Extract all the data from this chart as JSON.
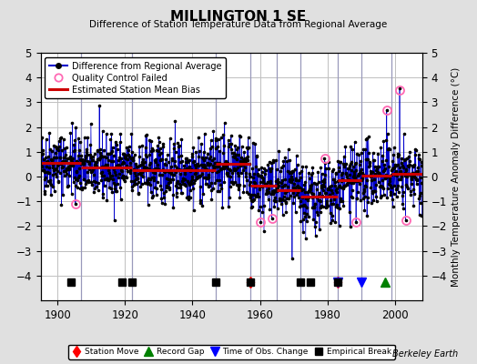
{
  "title": "MILLINGTON 1 SE",
  "subtitle": "Difference of Station Temperature Data from Regional Average",
  "ylabel": "Monthly Temperature Anomaly Difference (°C)",
  "ylim": [
    -5,
    5
  ],
  "yticks": [
    -4,
    -3,
    -2,
    -1,
    0,
    1,
    2,
    3,
    4,
    5
  ],
  "xlim": [
    1895,
    2008
  ],
  "xticks": [
    1900,
    1920,
    1940,
    1960,
    1980,
    2000
  ],
  "background_color": "#e0e0e0",
  "plot_bg_color": "#ffffff",
  "grid_color": "#c0c0c0",
  "line_color": "#0000cc",
  "marker_color": "#000000",
  "bias_color": "#cc0000",
  "qc_color": "#ff69b4",
  "watermark": "Berkeley Earth",
  "segment_biases": [
    {
      "start": 1895,
      "end": 1907,
      "bias": 0.55
    },
    {
      "start": 1907,
      "end": 1922,
      "bias": 0.35
    },
    {
      "start": 1922,
      "end": 1947,
      "bias": 0.25
    },
    {
      "start": 1947,
      "end": 1957,
      "bias": 0.5
    },
    {
      "start": 1957,
      "end": 1965,
      "bias": -0.35
    },
    {
      "start": 1965,
      "end": 1972,
      "bias": -0.55
    },
    {
      "start": 1972,
      "end": 1983,
      "bias": -0.8
    },
    {
      "start": 1983,
      "end": 1990,
      "bias": -0.15
    },
    {
      "start": 1990,
      "end": 1999,
      "bias": 0.05
    },
    {
      "start": 1999,
      "end": 2008,
      "bias": 0.1
    }
  ],
  "vertical_lines": [
    1907,
    1922,
    1947,
    1957,
    1965,
    1972,
    1983,
    1990,
    1999
  ],
  "station_moves": [
    1957,
    1983
  ],
  "record_gaps": [
    1997
  ],
  "obs_changes": [
    1983,
    1990
  ],
  "empirical_breaks": [
    1904,
    1919,
    1922,
    1947,
    1957,
    1972,
    1975,
    1983
  ],
  "qc_failed_points": [
    {
      "year": 1905.3,
      "val": -1.1
    },
    {
      "year": 1960.2,
      "val": -1.85
    },
    {
      "year": 1963.5,
      "val": -1.7
    },
    {
      "year": 1979.1,
      "val": 0.75
    },
    {
      "year": 1988.4,
      "val": -1.85
    },
    {
      "year": 1997.5,
      "val": 2.7
    },
    {
      "year": 2001.3,
      "val": 3.5
    },
    {
      "year": 2003.1,
      "val": -1.75
    }
  ],
  "spike_points": [
    {
      "year": 1997.5,
      "val": 2.7
    },
    {
      "year": 2001.3,
      "val": 3.55
    },
    {
      "year": 1969.5,
      "val": -3.3
    },
    {
      "year": 1961.2,
      "val": -2.2
    },
    {
      "year": 1973.5,
      "val": -2.5
    }
  ],
  "marker_y": -4.25,
  "seed": 42
}
